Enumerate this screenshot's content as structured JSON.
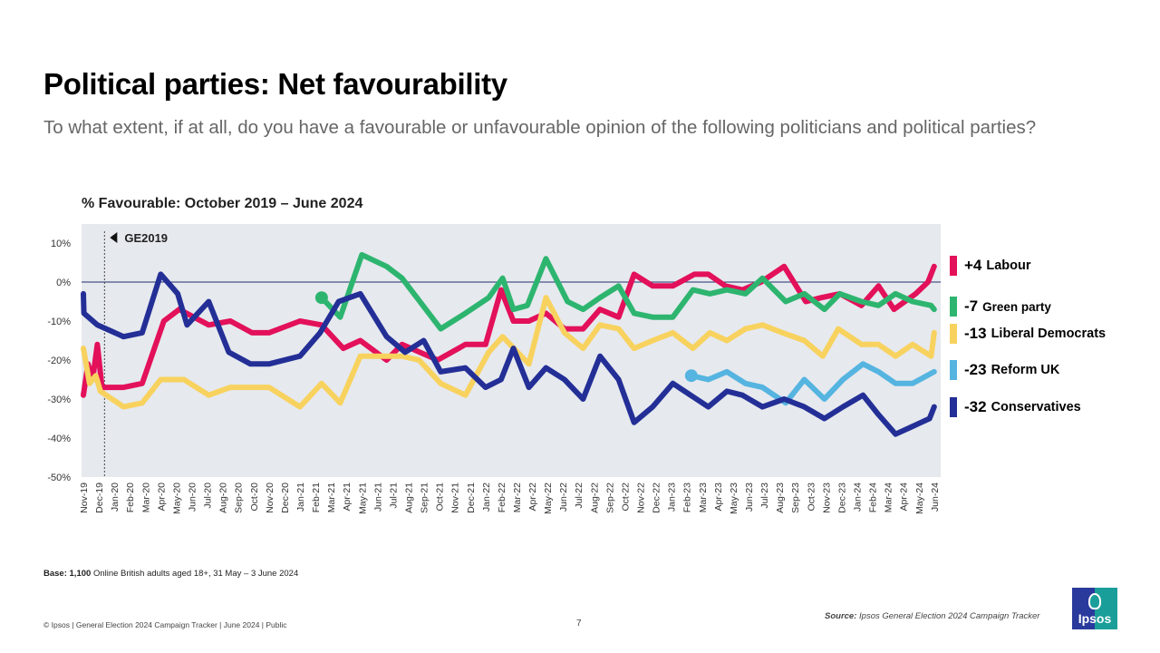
{
  "slide": {
    "title": "Political parties: Net favourability",
    "subtitle": "To what extent, if at all, do you have a favourable or unfavourable opinion of the following politicians and political parties?",
    "base_label": "Base:",
    "base_count": "1,100",
    "base_text": "Online British adults aged 18+, 31 May – 3 June 2024",
    "footer": "© Ipsos | General Election 2024 Campaign Tracker | June 2024 | Public",
    "page_number": "7",
    "source_label": "Source:",
    "source_text": "Ipsos General Election 2024 Campaign Tracker",
    "logo_text": "Ipsos"
  },
  "chart_data": {
    "type": "line",
    "title": "% Favourable: October 2019 – June 2024",
    "ylim": [
      -50,
      10
    ],
    "yticks": [
      10,
      0,
      -10,
      -20,
      -30,
      -40,
      -50
    ],
    "ytick_labels": [
      "10%",
      "0%",
      "-10%",
      "-20%",
      "-30%",
      "-40%",
      "-50%"
    ],
    "grid": false,
    "zero_line": true,
    "background": "#e6e9ee",
    "annotation": "GE2019",
    "annotation_date": "2019-12-12",
    "categories": [
      "Nov-19",
      "Dec-19",
      "Jan-20",
      "Feb-20",
      "Mar-20",
      "Apr-20",
      "May-20",
      "Jun-20",
      "Jul-20",
      "Aug-20",
      "Sep-20",
      "Oct-20",
      "Nov-20",
      "Dec-20",
      "Jan-21",
      "Feb-21",
      "Mar-21",
      "Apr-21",
      "May-21",
      "Jun-21",
      "Jul-21",
      "Aug-21",
      "Sep-21",
      "Oct-21",
      "Nov-21",
      "Dec-21",
      "Jan-22",
      "Feb-22",
      "Mar-22",
      "Apr-22",
      "May-22",
      "Jun-22",
      "Jul-22",
      "Aug-22",
      "Sep-22",
      "Oct-22",
      "Nov-22",
      "Dec-22",
      "Jan-23",
      "Feb-23",
      "Mar-23",
      "Apr-23",
      "May-23",
      "Jun-23",
      "Jul-23",
      "Aug-23",
      "Sep-23",
      "Oct-23",
      "Nov-23",
      "Dec-23",
      "Jan-24",
      "Feb-24",
      "Mar-24",
      "Apr-24",
      "May-24",
      "Jun-24"
    ],
    "legend_position": "right",
    "series": [
      {
        "name": "Labour",
        "latest": "+4",
        "color": "#e3105a",
        "points": [
          [
            "2019-11-01",
            -29
          ],
          [
            "2019-11-10",
            -21
          ],
          [
            "2019-11-19",
            -25
          ],
          [
            "2019-11-28",
            -16
          ],
          [
            "2019-12-07",
            -27
          ],
          [
            "2020-01-19",
            -27
          ],
          [
            "2020-02-25",
            -26
          ],
          [
            "2020-04-07",
            -10
          ],
          [
            "2020-05-07",
            -7
          ],
          [
            "2020-07-04",
            -11
          ],
          [
            "2020-08-16",
            -10
          ],
          [
            "2020-09-28",
            -13
          ],
          [
            "2020-11-01",
            -13
          ],
          [
            "2021-01-01",
            -10
          ],
          [
            "2021-02-13",
            -11
          ],
          [
            "2021-03-25",
            -17
          ],
          [
            "2021-04-28",
            -15
          ],
          [
            "2021-06-19",
            -20
          ],
          [
            "2021-07-19",
            -16
          ],
          [
            "2021-09-28",
            -20
          ],
          [
            "2021-11-22",
            -16
          ],
          [
            "2022-01-01",
            -16
          ],
          [
            "2022-02-01",
            -2
          ],
          [
            "2022-02-25",
            -10
          ],
          [
            "2022-03-25",
            -10
          ],
          [
            "2022-04-28",
            -8
          ],
          [
            "2022-06-04",
            -12
          ],
          [
            "2022-07-10",
            -12
          ],
          [
            "2022-08-13",
            -7
          ],
          [
            "2022-09-19",
            -9
          ],
          [
            "2022-10-19",
            2
          ],
          [
            "2022-11-25",
            -1
          ],
          [
            "2023-01-04",
            -1
          ],
          [
            "2023-02-16",
            2
          ],
          [
            "2023-03-13",
            2
          ],
          [
            "2023-04-16",
            -1
          ],
          [
            "2023-05-19",
            -2
          ],
          [
            "2023-06-25",
            0
          ],
          [
            "2023-08-10",
            4
          ],
          [
            "2023-09-22",
            -5
          ],
          [
            "2023-10-22",
            -4
          ],
          [
            "2023-11-28",
            -3
          ],
          [
            "2024-01-10",
            -6
          ],
          [
            "2024-02-13",
            -1
          ],
          [
            "2024-03-13",
            -7
          ],
          [
            "2024-04-25",
            -3
          ],
          [
            "2024-05-19",
            0
          ],
          [
            "2024-06-01",
            4
          ]
        ]
      },
      {
        "name": "Green party",
        "latest": "-7",
        "color": "#2db56f",
        "start_marker": true,
        "points": [
          [
            "2021-02-13",
            -4
          ],
          [
            "2021-03-19",
            -9
          ],
          [
            "2021-05-01",
            7
          ],
          [
            "2021-06-19",
            4
          ],
          [
            "2021-07-19",
            1
          ],
          [
            "2021-10-04",
            -12
          ],
          [
            "2021-11-22",
            -8
          ],
          [
            "2022-01-07",
            -4
          ],
          [
            "2022-02-04",
            1
          ],
          [
            "2022-02-25",
            -7
          ],
          [
            "2022-03-22",
            -6
          ],
          [
            "2022-04-28",
            6
          ],
          [
            "2022-06-10",
            -5
          ],
          [
            "2022-07-10",
            -7
          ],
          [
            "2022-08-13",
            -4
          ],
          [
            "2022-09-19",
            -1
          ],
          [
            "2022-10-19",
            -8
          ],
          [
            "2022-11-25",
            -9
          ],
          [
            "2023-01-04",
            -9
          ],
          [
            "2023-02-13",
            -2
          ],
          [
            "2023-03-16",
            -3
          ],
          [
            "2023-04-19",
            -2
          ],
          [
            "2023-05-25",
            -3
          ],
          [
            "2023-06-28",
            1
          ],
          [
            "2023-08-13",
            -5
          ],
          [
            "2023-09-19",
            -3
          ],
          [
            "2023-10-28",
            -7
          ],
          [
            "2023-11-28",
            -3
          ],
          [
            "2024-01-10",
            -5
          ],
          [
            "2024-02-13",
            -6
          ],
          [
            "2024-03-16",
            -3
          ],
          [
            "2024-04-19",
            -5
          ],
          [
            "2024-05-25",
            -6
          ],
          [
            "2024-06-01",
            -7
          ]
        ]
      },
      {
        "name": "Liberal Democrats",
        "latest": "-13",
        "color": "#f8d25e",
        "points": [
          [
            "2019-11-01",
            -17
          ],
          [
            "2019-11-13",
            -26
          ],
          [
            "2019-11-25",
            -24
          ],
          [
            "2019-12-04",
            -28
          ],
          [
            "2020-01-19",
            -32
          ],
          [
            "2020-02-25",
            -31
          ],
          [
            "2020-04-01",
            -25
          ],
          [
            "2020-05-16",
            -25
          ],
          [
            "2020-07-04",
            -29
          ],
          [
            "2020-08-16",
            -27
          ],
          [
            "2020-11-01",
            -27
          ],
          [
            "2021-01-01",
            -32
          ],
          [
            "2021-02-13",
            -26
          ],
          [
            "2021-03-19",
            -31
          ],
          [
            "2021-04-28",
            -19
          ],
          [
            "2021-07-19",
            -19
          ],
          [
            "2021-08-22",
            -20
          ],
          [
            "2021-10-04",
            -26
          ],
          [
            "2021-11-22",
            -29
          ],
          [
            "2022-01-07",
            -18
          ],
          [
            "2022-02-04",
            -14
          ],
          [
            "2022-03-25",
            -21
          ],
          [
            "2022-04-28",
            -4
          ],
          [
            "2022-06-04",
            -13
          ],
          [
            "2022-07-10",
            -17
          ],
          [
            "2022-08-13",
            -11
          ],
          [
            "2022-09-19",
            -12
          ],
          [
            "2022-10-19",
            -17
          ],
          [
            "2022-11-25",
            -15
          ],
          [
            "2023-01-04",
            -13
          ],
          [
            "2023-02-13",
            -17
          ],
          [
            "2023-03-16",
            -13
          ],
          [
            "2023-04-19",
            -15
          ],
          [
            "2023-05-25",
            -12
          ],
          [
            "2023-06-28",
            -11
          ],
          [
            "2023-08-07",
            -13
          ],
          [
            "2023-09-19",
            -15
          ],
          [
            "2023-10-25",
            -19
          ],
          [
            "2023-11-25",
            -12
          ],
          [
            "2024-01-10",
            -16
          ],
          [
            "2024-02-13",
            -16
          ],
          [
            "2024-03-16",
            -19
          ],
          [
            "2024-04-19",
            -16
          ],
          [
            "2024-05-25",
            -19
          ],
          [
            "2024-06-01",
            -13
          ]
        ]
      },
      {
        "name": "Reform UK",
        "latest": "-23",
        "color": "#55b4e0",
        "start_marker": true,
        "points": [
          [
            "2023-02-10",
            -24
          ],
          [
            "2023-03-13",
            -25
          ],
          [
            "2023-04-19",
            -23
          ],
          [
            "2023-05-25",
            -26
          ],
          [
            "2023-06-28",
            -27
          ],
          [
            "2023-08-13",
            -31
          ],
          [
            "2023-09-19",
            -25
          ],
          [
            "2023-10-28",
            -30
          ],
          [
            "2023-12-04",
            -25
          ],
          [
            "2024-01-13",
            -21
          ],
          [
            "2024-02-13",
            -23
          ],
          [
            "2024-03-16",
            -26
          ],
          [
            "2024-04-19",
            -26
          ],
          [
            "2024-06-01",
            -23
          ]
        ]
      },
      {
        "name": "Conservatives",
        "latest": "-32",
        "color": "#232f96",
        "points": [
          [
            "2019-11-01",
            -3
          ],
          [
            "2019-11-02",
            -8
          ],
          [
            "2019-11-28",
            -11
          ],
          [
            "2020-01-19",
            -14
          ],
          [
            "2020-02-25",
            -13
          ],
          [
            "2020-04-01",
            2
          ],
          [
            "2020-05-04",
            -3
          ],
          [
            "2020-05-22",
            -11
          ],
          [
            "2020-07-04",
            -5
          ],
          [
            "2020-08-13",
            -18
          ],
          [
            "2020-09-25",
            -21
          ],
          [
            "2020-11-01",
            -21
          ],
          [
            "2021-01-01",
            -19
          ],
          [
            "2021-02-10",
            -13
          ],
          [
            "2021-03-16",
            -5
          ],
          [
            "2021-04-28",
            -3
          ],
          [
            "2021-06-19",
            -14
          ],
          [
            "2021-07-25",
            -18
          ],
          [
            "2021-09-01",
            -15
          ],
          [
            "2021-10-04",
            -23
          ],
          [
            "2021-11-22",
            -22
          ],
          [
            "2022-01-01",
            -27
          ],
          [
            "2022-02-01",
            -25
          ],
          [
            "2022-02-25",
            -17
          ],
          [
            "2022-03-25",
            -27
          ],
          [
            "2022-04-28",
            -22
          ],
          [
            "2022-06-04",
            -25
          ],
          [
            "2022-07-10",
            -30
          ],
          [
            "2022-08-13",
            -19
          ],
          [
            "2022-09-19",
            -25
          ],
          [
            "2022-10-19",
            -36
          ],
          [
            "2022-11-25",
            -32
          ],
          [
            "2023-01-04",
            -26
          ],
          [
            "2023-03-13",
            -32
          ],
          [
            "2023-04-19",
            -28
          ],
          [
            "2023-05-19",
            -29
          ],
          [
            "2023-06-28",
            -32
          ],
          [
            "2023-08-10",
            -30
          ],
          [
            "2023-09-19",
            -32
          ],
          [
            "2023-10-28",
            -35
          ],
          [
            "2023-12-04",
            -32
          ],
          [
            "2024-01-13",
            -29
          ],
          [
            "2024-02-13",
            -34
          ],
          [
            "2024-03-16",
            -39
          ],
          [
            "2024-04-19",
            -37
          ],
          [
            "2024-05-22",
            -35
          ],
          [
            "2024-06-01",
            -32
          ]
        ]
      }
    ]
  }
}
